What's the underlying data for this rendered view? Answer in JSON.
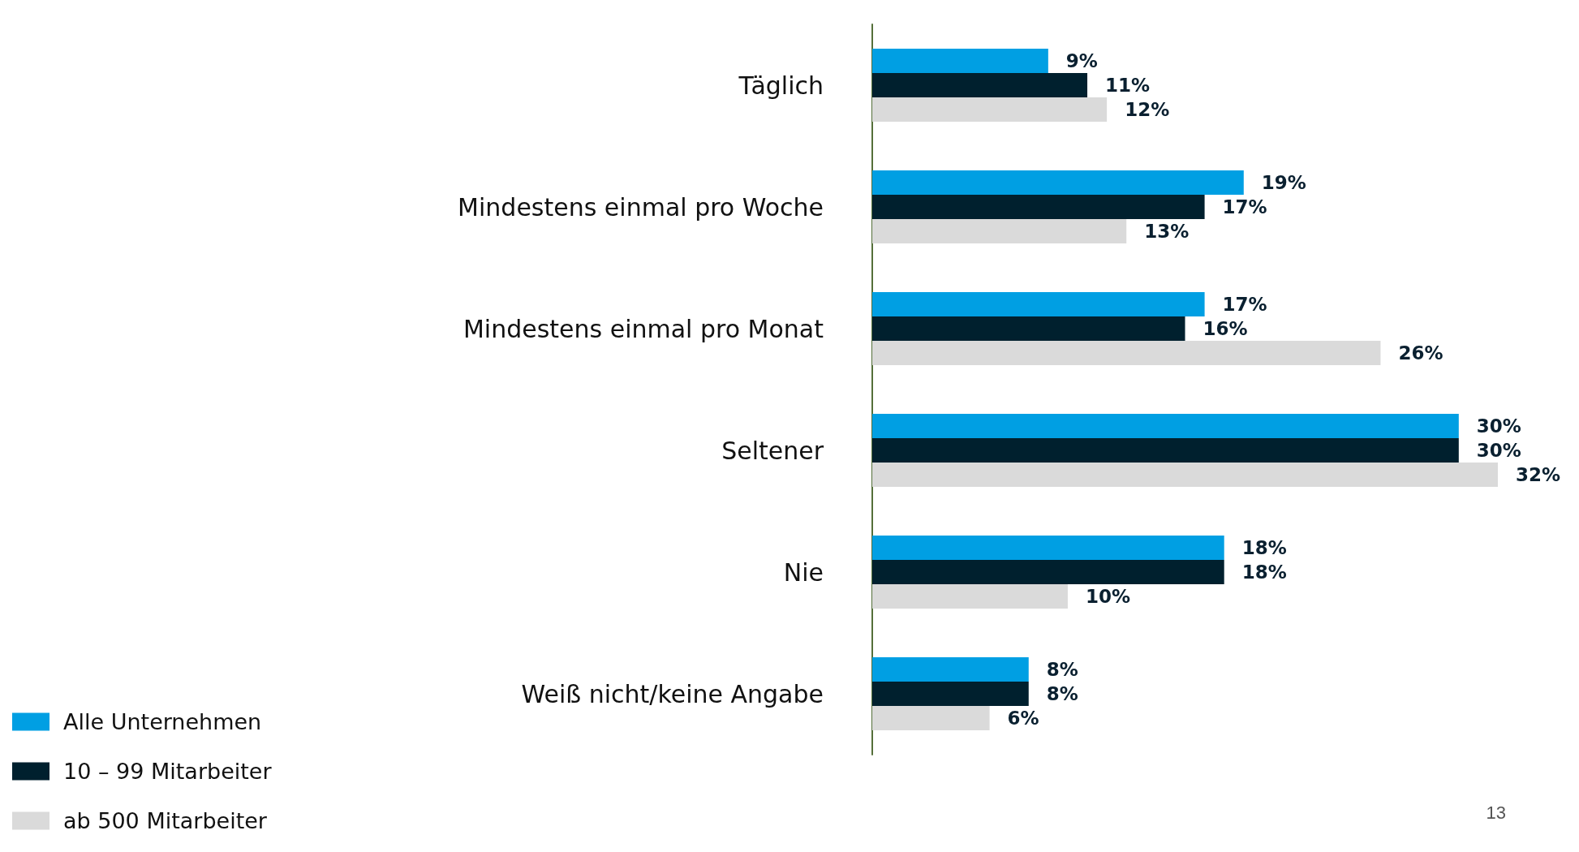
{
  "chart_data": {
    "type": "bar",
    "orientation": "horizontal",
    "categories": [
      "Täglich",
      "Mindestens einmal pro Woche",
      "Mindestens einmal pro Monat",
      "Seltener",
      "Nie",
      "Weiß nicht/keine Angabe"
    ],
    "series": [
      {
        "name": "Alle Unternehmen",
        "color": "#009fe3",
        "values": [
          9,
          19,
          17,
          30,
          18,
          8
        ],
        "value_labels": [
          "9%",
          "19%",
          "17%",
          "30%",
          "18%",
          "8%"
        ]
      },
      {
        "name": "10 – 99 Mitarbeiter",
        "color": "#00202e",
        "values": [
          11,
          17,
          16,
          30,
          18,
          8
        ],
        "value_labels": [
          "11%",
          "17%",
          "16%",
          "30%",
          "18%",
          "8%"
        ]
      },
      {
        "name": "ab 500 Mitarbeiter",
        "color": "#dadada",
        "values": [
          12,
          13,
          26,
          32,
          10,
          6
        ],
        "value_labels": [
          "12%",
          "13%",
          "26%",
          "32%",
          "10%",
          "6%"
        ]
      }
    ],
    "legend": "bottom left",
    "annotations": [
      "13"
    ]
  }
}
